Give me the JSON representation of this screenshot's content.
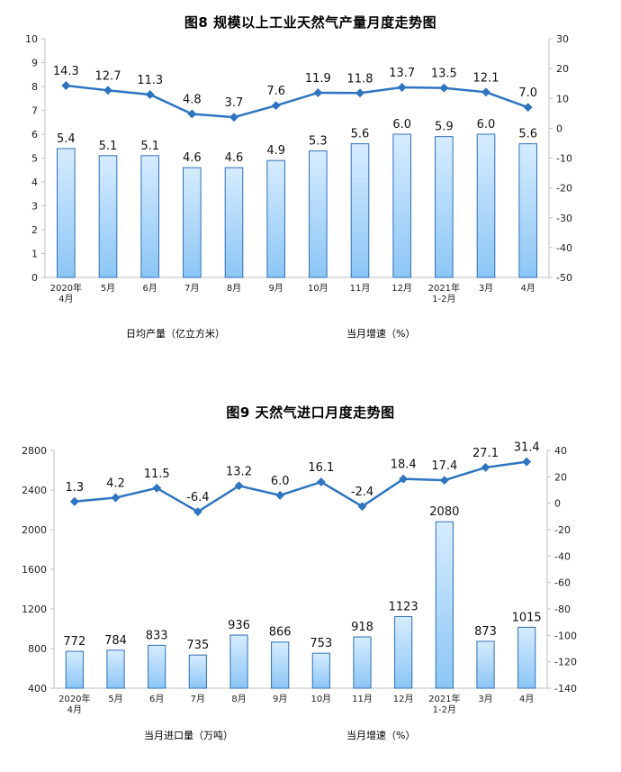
{
  "chart_data": [
    {
      "type": "bar",
      "title": "图8  规模以上工业天然气产量月度走势图",
      "categories": [
        "2020年\n4月",
        "5月",
        "6月",
        "7月",
        "8月",
        "9月",
        "10月",
        "11月",
        "12月",
        "2021年\n1-2月",
        "3月",
        "4月"
      ],
      "series": [
        {
          "name": "日均产量（亿立方米）",
          "type": "bar",
          "axis": "left",
          "values": [
            5.4,
            5.1,
            5.1,
            4.6,
            4.6,
            4.9,
            5.3,
            5.6,
            6.0,
            5.9,
            6.0,
            5.6
          ],
          "labels": [
            "5.4",
            "5.1",
            "5.1",
            "4.6",
            "4.6",
            "4.9",
            "5.3",
            "5.6",
            "6.0",
            "5.9",
            "6.0",
            "5.6"
          ]
        },
        {
          "name": "当月增速（%）",
          "type": "line",
          "axis": "right",
          "values": [
            14.3,
            12.7,
            11.3,
            4.8,
            3.7,
            7.6,
            11.9,
            11.8,
            13.7,
            13.5,
            12.1,
            7.0
          ],
          "labels": [
            "14.3",
            "12.7",
            "11.3",
            "4.8",
            "3.7",
            "7.6",
            "11.9",
            "11.8",
            "13.7",
            "13.5",
            "12.1",
            "7.0"
          ]
        }
      ],
      "ylim_left": [
        0,
        10
      ],
      "ylim_right": [
        -50,
        30
      ],
      "yticks_left": [
        "0",
        "1",
        "2",
        "3",
        "4",
        "5",
        "6",
        "7",
        "8",
        "9",
        "10"
      ],
      "yticks_right": [
        "-50",
        "-40",
        "-30",
        "-20",
        "-10",
        "0",
        "10",
        "20",
        "30"
      ],
      "legend_position": "bottom",
      "grid": false
    },
    {
      "type": "bar",
      "title": "图9  天然气进口月度走势图",
      "categories": [
        "2020年\n4月",
        "5月",
        "6月",
        "7月",
        "8月",
        "9月",
        "10月",
        "11月",
        "12月",
        "2021年\n1-2月",
        "3月",
        "4月"
      ],
      "series": [
        {
          "name": "当月进口量（万吨）",
          "type": "bar",
          "axis": "left",
          "values": [
            772,
            784,
            833,
            735,
            936,
            866,
            753,
            918,
            1123,
            2080,
            873,
            1015
          ],
          "labels": [
            "772",
            "784",
            "833",
            "735",
            "936",
            "866",
            "753",
            "918",
            "1123",
            "2080",
            "873",
            "1015"
          ]
        },
        {
          "name": "当月增速（%）",
          "type": "line",
          "axis": "right",
          "values": [
            1.3,
            4.2,
            11.5,
            -6.4,
            13.2,
            6.0,
            16.1,
            -2.4,
            18.4,
            17.4,
            27.1,
            31.4
          ],
          "labels": [
            "1.3",
            "4.2",
            "11.5",
            "-6.4",
            "13.2",
            "6.0",
            "16.1",
            "-2.4",
            "18.4",
            "17.4",
            "27.1",
            "31.4"
          ]
        }
      ],
      "ylim_left": [
        400,
        2800
      ],
      "ylim_right": [
        -140,
        40
      ],
      "yticks_left": [
        "400",
        "800",
        "1200",
        "1600",
        "2000",
        "2400",
        "2800"
      ],
      "yticks_right": [
        "-140",
        "-120",
        "-100",
        "-80",
        "-60",
        "-40",
        "-20",
        "0",
        "20",
        "40"
      ],
      "legend_position": "bottom",
      "grid": false
    }
  ],
  "colors": {
    "bar_fill_top": "#d6ecff",
    "bar_fill_bottom": "#8cc6f5",
    "bar_border": "#2d6fb7",
    "line": "#2e74c0",
    "axis": "#bfbfbf"
  }
}
